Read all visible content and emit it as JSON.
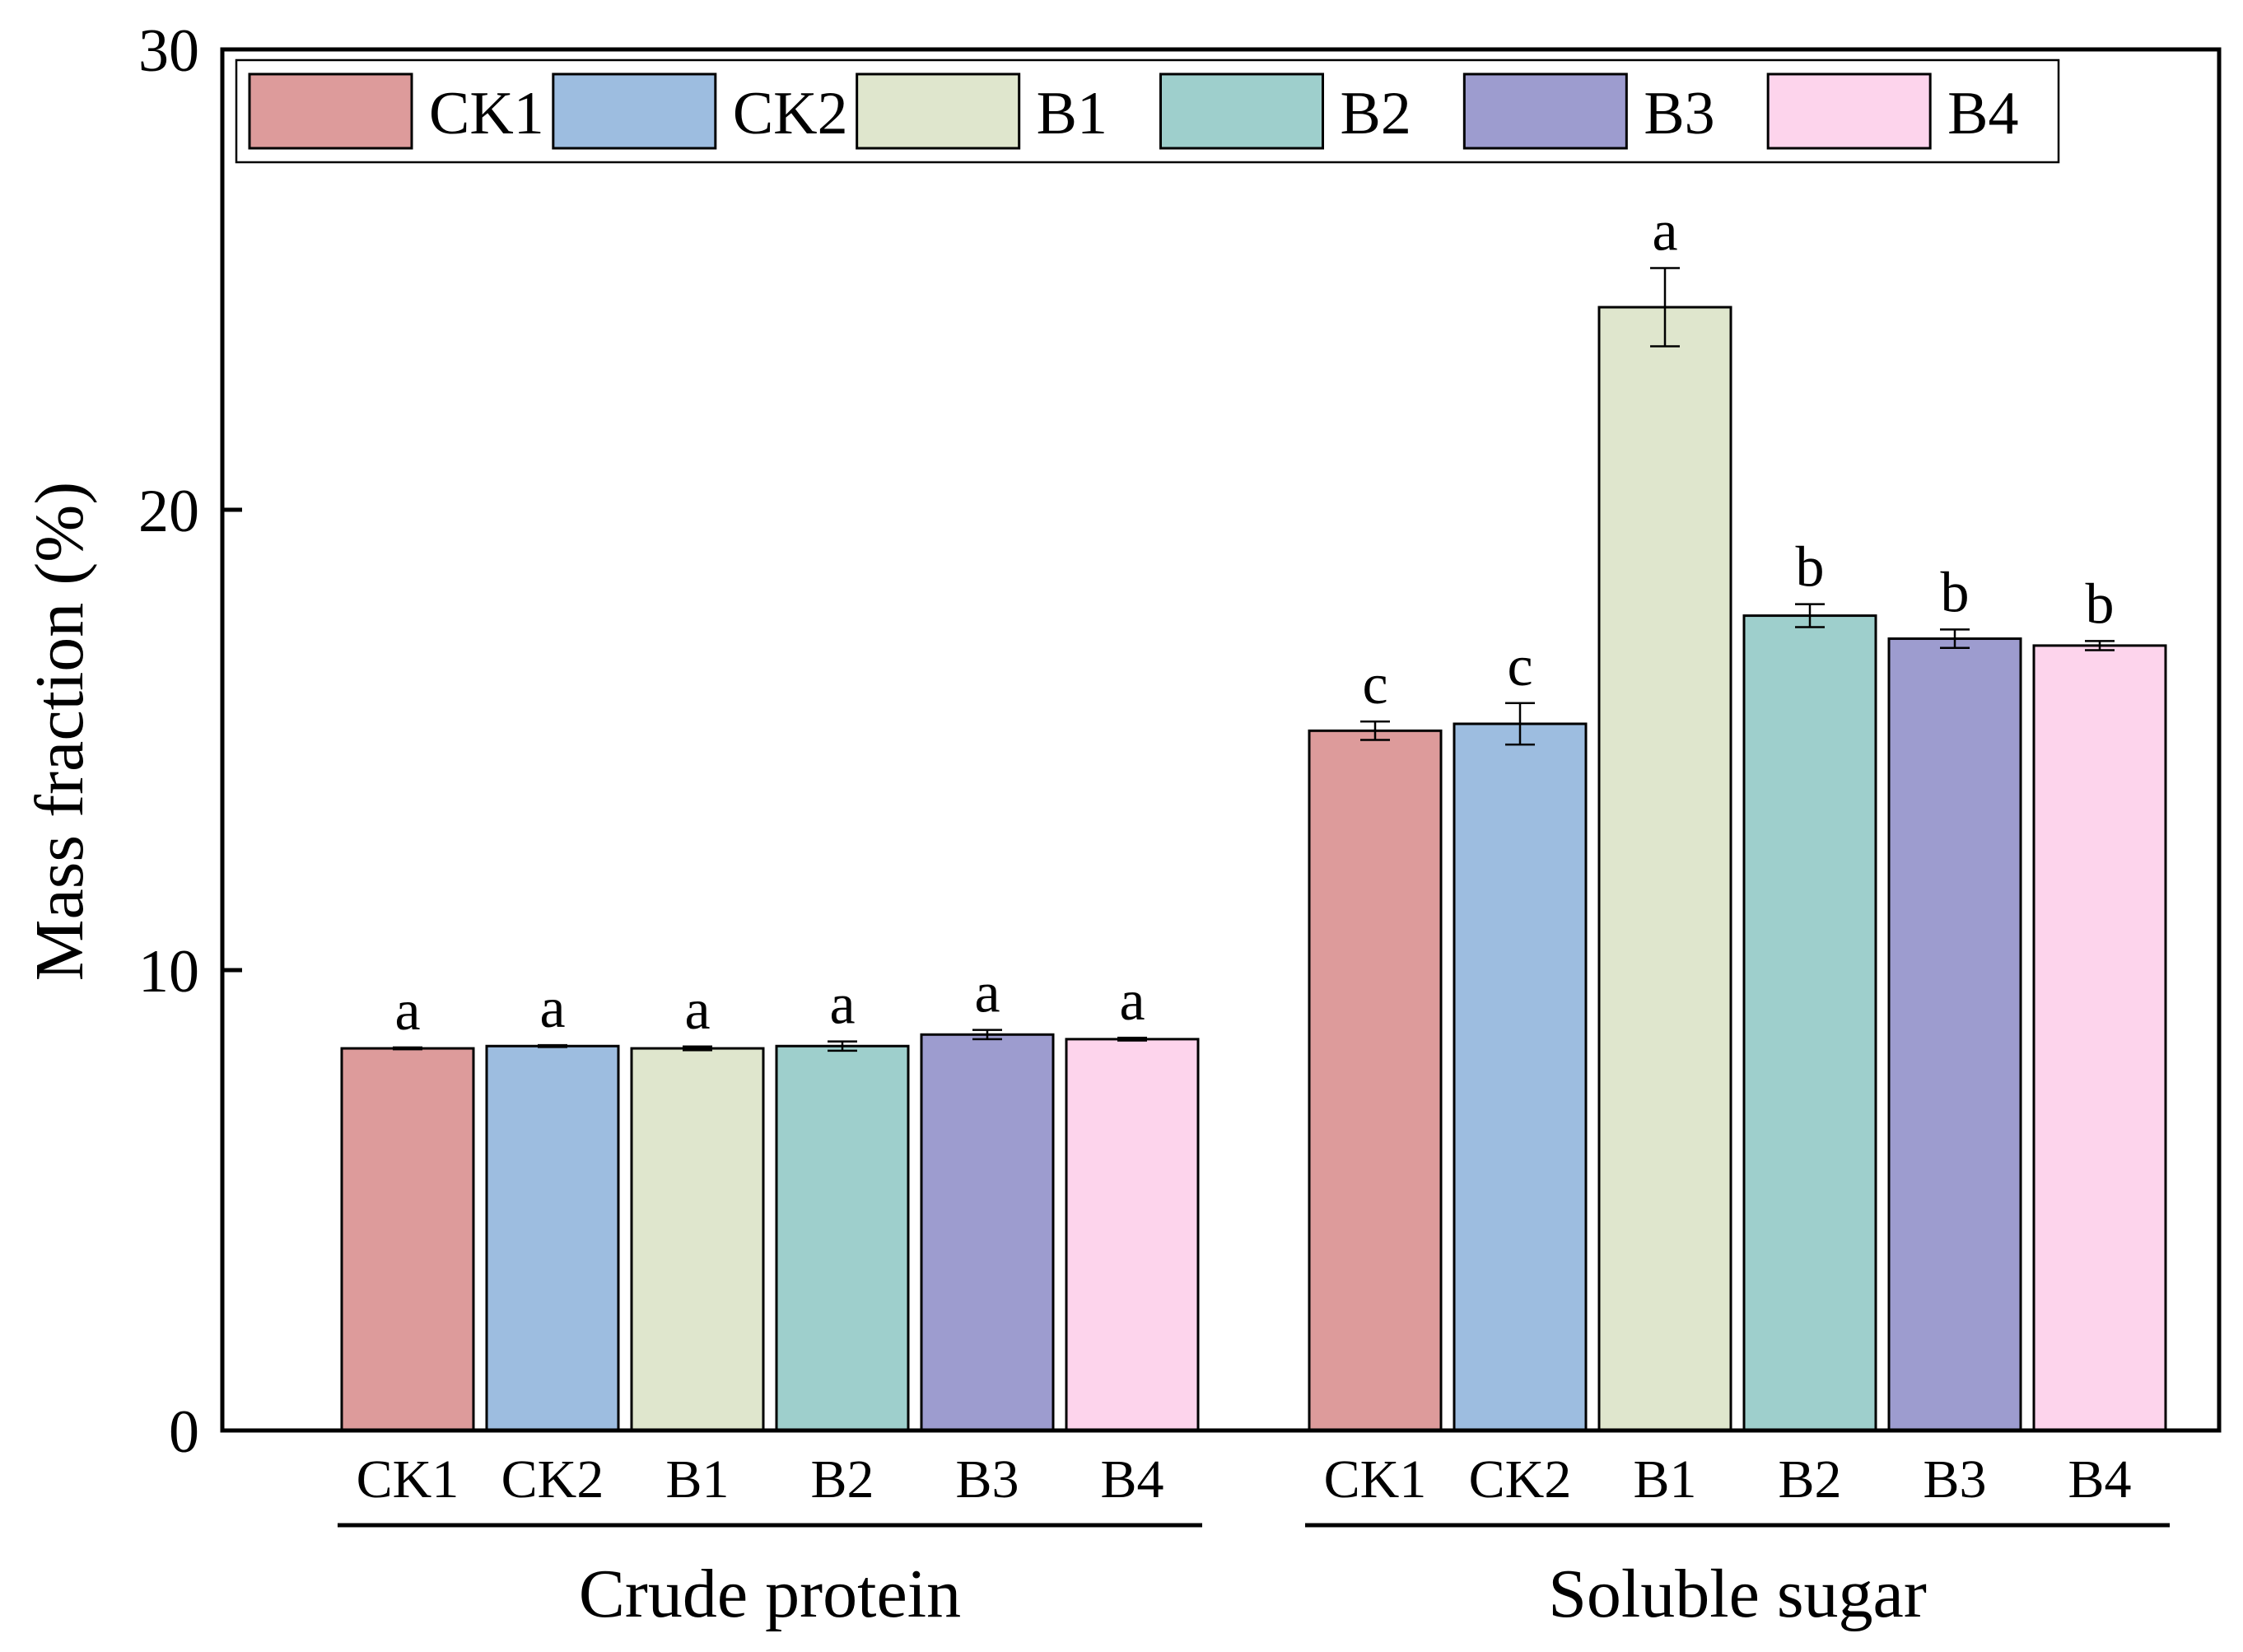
{
  "chart_data": {
    "type": "bar",
    "ylabel": "Mass fraction (%)",
    "xlabel": "",
    "ylim": [
      0,
      30
    ],
    "yticks": [
      0,
      10,
      20,
      30
    ],
    "legend_position": "top",
    "groups": [
      "Crude protein",
      "Soluble sugar"
    ],
    "series": [
      {
        "name": "CK1",
        "color": "#dd9b9b",
        "values": [
          8.3,
          15.2
        ],
        "errors": [
          0.02,
          0.2
        ],
        "letters": [
          "a",
          "c"
        ]
      },
      {
        "name": "CK2",
        "color": "#9dbde0",
        "values": [
          8.35,
          15.35
        ],
        "errors": [
          0.02,
          0.45
        ],
        "letters": [
          "a",
          "c"
        ]
      },
      {
        "name": "B1",
        "color": "#dfe6cd",
        "values": [
          8.3,
          24.4
        ],
        "errors": [
          0.04,
          0.85
        ],
        "letters": [
          "a",
          "a"
        ]
      },
      {
        "name": "B2",
        "color": "#9ecfcc",
        "values": [
          8.35,
          17.7
        ],
        "errors": [
          0.1,
          0.25
        ],
        "letters": [
          "a",
          "b"
        ]
      },
      {
        "name": "B3",
        "color": "#9d9ccf",
        "values": [
          8.6,
          17.2
        ],
        "errors": [
          0.1,
          0.2
        ],
        "letters": [
          "a",
          "b"
        ]
      },
      {
        "name": "B4",
        "color": "#fdd4ec",
        "values": [
          8.5,
          17.05
        ],
        "errors": [
          0.03,
          0.1
        ],
        "letters": [
          "a",
          "b"
        ]
      }
    ]
  }
}
